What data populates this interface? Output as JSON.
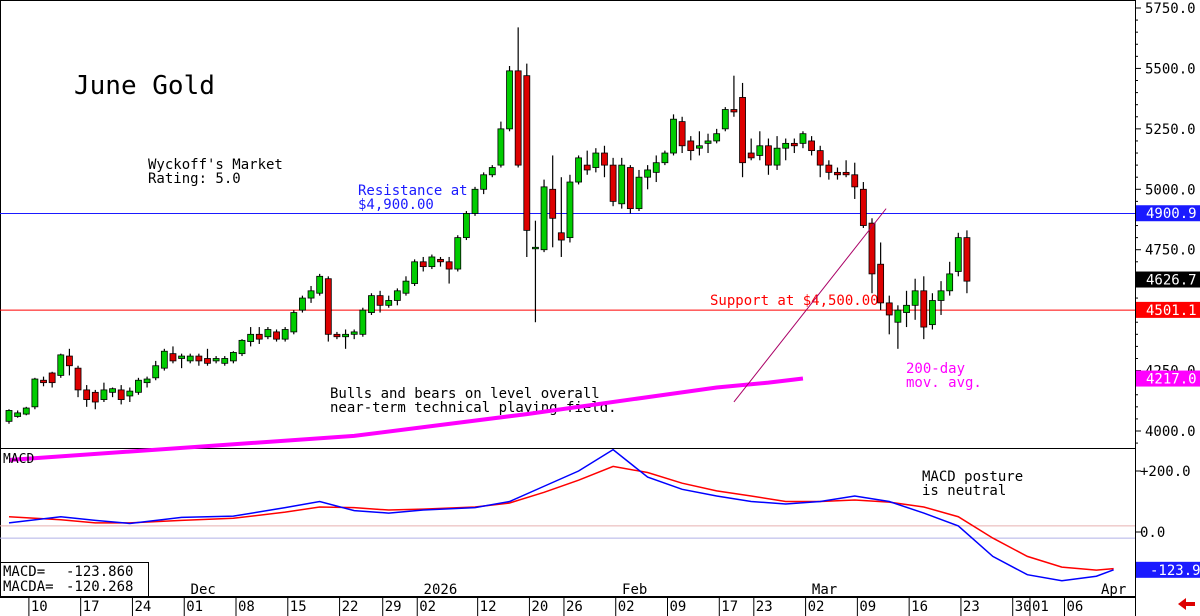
{
  "chart_data": [
    {
      "type": "candlestick",
      "title": "June Gold",
      "rating_text": [
        "Wyckoff's Market",
        "Rating: 5.0"
      ],
      "ylim": [
        3870,
        5760
      ],
      "y_ticks": [
        "5750.0",
        "5500.0",
        "5250.0",
        "5000.0",
        "4750.0",
        "4500.0",
        "4250.0",
        "4000.0"
      ],
      "y_tick_values": [
        5750,
        5500,
        5250,
        5000,
        4750,
        4500,
        4250,
        4000
      ],
      "annotations": {
        "resistance": [
          "Resistance at",
          "$4,900.00"
        ],
        "support": "Support at $4,500.00",
        "ma": [
          "200-day",
          "mov. avg."
        ],
        "comment": [
          "Bulls and bears on level overall",
          "near-term technical playing field."
        ]
      },
      "levels": {
        "resistance": 4900,
        "support": 4500
      },
      "price_labels": [
        {
          "text": "4900.9",
          "value": 4900.9,
          "color": "#1a1aff"
        },
        {
          "text": "4626.7",
          "value": 4626.7,
          "color": "#000000"
        },
        {
          "text": "4501.1",
          "value": 4501.1,
          "color": "#ff0000"
        },
        {
          "text": "4217.0",
          "value": 4217.0,
          "color": "#ff00ff"
        }
      ],
      "ma_line": [
        [
          0,
          3880
        ],
        [
          40,
          3980
        ],
        [
          60,
          4070
        ],
        [
          76,
          4150
        ],
        [
          82,
          4180
        ],
        [
          88,
          4200
        ],
        [
          92,
          4217
        ]
      ],
      "trendline": [
        [
          84,
          4120
        ],
        [
          97,
          4920
        ]
      ],
      "candles": [
        [
          4040,
          4085,
          4030,
          4090
        ],
        [
          4060,
          4075,
          4055,
          4085
        ],
        [
          4070,
          4095,
          4065,
          4100
        ],
        [
          4100,
          4215,
          4090,
          4220
        ],
        [
          4210,
          4200,
          4185,
          4225
        ],
        [
          4240,
          4200,
          4180,
          4245
        ],
        [
          4230,
          4315,
          4220,
          4320
        ],
        [
          4310,
          4270,
          4230,
          4340
        ],
        [
          4260,
          4170,
          4140,
          4270
        ],
        [
          4170,
          4130,
          4100,
          4190
        ],
        [
          4160,
          4120,
          4090,
          4170
        ],
        [
          4130,
          4170,
          4120,
          4200
        ],
        [
          4160,
          4175,
          4140,
          4180
        ],
        [
          4170,
          4130,
          4110,
          4190
        ],
        [
          4145,
          4165,
          4120,
          4180
        ],
        [
          4160,
          4210,
          4150,
          4220
        ],
        [
          4200,
          4215,
          4180,
          4225
        ],
        [
          4220,
          4270,
          4210,
          4290
        ],
        [
          4260,
          4330,
          4250,
          4340
        ],
        [
          4320,
          4290,
          4280,
          4350
        ],
        [
          4300,
          4310,
          4260,
          4320
        ],
        [
          4290,
          4310,
          4280,
          4320
        ],
        [
          4310,
          4290,
          4270,
          4320
        ],
        [
          4300,
          4280,
          4270,
          4340
        ],
        [
          4290,
          4300,
          4280,
          4310
        ],
        [
          4280,
          4300,
          4270,
          4310
        ],
        [
          4290,
          4325,
          4280,
          4330
        ],
        [
          4320,
          4375,
          4310,
          4380
        ],
        [
          4370,
          4400,
          4350,
          4430
        ],
        [
          4400,
          4380,
          4360,
          4430
        ],
        [
          4390,
          4420,
          4380,
          4430
        ],
        [
          4410,
          4380,
          4370,
          4420
        ],
        [
          4380,
          4420,
          4370,
          4430
        ],
        [
          4410,
          4490,
          4400,
          4500
        ],
        [
          4500,
          4550,
          4490,
          4560
        ],
        [
          4550,
          4580,
          4530,
          4600
        ],
        [
          4570,
          4640,
          4560,
          4650
        ],
        [
          4630,
          4400,
          4370,
          4640
        ],
        [
          4400,
          4390,
          4380,
          4410
        ],
        [
          4390,
          4400,
          4340,
          4420
        ],
        [
          4400,
          4410,
          4380,
          4420
        ],
        [
          4400,
          4500,
          4390,
          4510
        ],
        [
          4490,
          4560,
          4480,
          4570
        ],
        [
          4560,
          4520,
          4490,
          4580
        ],
        [
          4520,
          4540,
          4510,
          4560
        ],
        [
          4540,
          4580,
          4520,
          4590
        ],
        [
          4570,
          4620,
          4560,
          4640
        ],
        [
          4610,
          4700,
          4600,
          4710
        ],
        [
          4700,
          4680,
          4660,
          4720
        ],
        [
          4680,
          4720,
          4670,
          4730
        ],
        [
          4710,
          4700,
          4680,
          4720
        ],
        [
          4700,
          4670,
          4610,
          4720
        ],
        [
          4670,
          4800,
          4660,
          4810
        ],
        [
          4800,
          4900,
          4790,
          4910
        ],
        [
          4900,
          5000,
          4890,
          5010
        ],
        [
          5000,
          5060,
          4980,
          5070
        ],
        [
          5060,
          5090,
          5050,
          5100
        ],
        [
          5100,
          5250,
          5090,
          5280
        ],
        [
          5250,
          5490,
          5240,
          5510
        ],
        [
          5490,
          5100,
          5090,
          5670
        ],
        [
          5470,
          4830,
          4720,
          5520
        ],
        [
          4760,
          4760,
          4450,
          4870
        ],
        [
          4750,
          5010,
          4740,
          5040
        ],
        [
          5000,
          4880,
          4760,
          5140
        ],
        [
          4820,
          4790,
          4720,
          5050
        ],
        [
          4800,
          5030,
          4780,
          5060
        ],
        [
          5030,
          5130,
          5020,
          5140
        ],
        [
          5100,
          5080,
          5060,
          5160
        ],
        [
          5090,
          5150,
          5070,
          5170
        ],
        [
          5150,
          5100,
          5050,
          5180
        ],
        [
          5100,
          4950,
          4930,
          5130
        ],
        [
          4940,
          5100,
          4920,
          5130
        ],
        [
          5090,
          4920,
          4900,
          5100
        ],
        [
          4920,
          5050,
          4910,
          5080
        ],
        [
          5050,
          5080,
          5000,
          5100
        ],
        [
          5070,
          5110,
          5030,
          5140
        ],
        [
          5110,
          5150,
          5100,
          5160
        ],
        [
          5150,
          5290,
          5140,
          5310
        ],
        [
          5280,
          5180,
          5150,
          5300
        ],
        [
          5200,
          5160,
          5120,
          5220
        ],
        [
          5170,
          5180,
          5140,
          5240
        ],
        [
          5190,
          5200,
          5150,
          5230
        ],
        [
          5200,
          5230,
          5190,
          5250
        ],
        [
          5250,
          5330,
          5240,
          5340
        ],
        [
          5330,
          5320,
          5300,
          5470
        ],
        [
          5380,
          5110,
          5050,
          5440
        ],
        [
          5150,
          5130,
          5120,
          5210
        ],
        [
          5140,
          5180,
          5120,
          5240
        ],
        [
          5180,
          5100,
          5060,
          5210
        ],
        [
          5100,
          5170,
          5080,
          5220
        ],
        [
          5170,
          5190,
          5120,
          5210
        ],
        [
          5190,
          5180,
          5150,
          5210
        ],
        [
          5190,
          5230,
          5170,
          5240
        ],
        [
          5200,
          5160,
          5140,
          5220
        ],
        [
          5160,
          5100,
          5050,
          5180
        ],
        [
          5100,
          5070,
          5040,
          5120
        ],
        [
          5070,
          5060,
          5040,
          5090
        ],
        [
          5070,
          5060,
          5050,
          5120
        ],
        [
          5060,
          5010,
          4960,
          5110
        ],
        [
          5000,
          4850,
          4840,
          5030
        ],
        [
          4860,
          4650,
          4570,
          4880
        ],
        [
          4690,
          4530,
          4500,
          4780
        ],
        [
          4530,
          4480,
          4400,
          4560
        ],
        [
          4450,
          4500,
          4340,
          4520
        ],
        [
          4490,
          4520,
          4430,
          4580
        ],
        [
          4520,
          4580,
          4460,
          4630
        ],
        [
          4580,
          4430,
          4380,
          4640
        ],
        [
          4440,
          4540,
          4420,
          4570
        ],
        [
          4540,
          4580,
          4480,
          4620
        ],
        [
          4580,
          4650,
          4560,
          4700
        ],
        [
          4660,
          4800,
          4640,
          4820
        ],
        [
          4800,
          4620,
          4570,
          4830
        ]
      ]
    },
    {
      "type": "line",
      "title": "MACD",
      "ylim": [
        -178,
        277
      ],
      "y_ticks": [
        "+200.0",
        "0.0"
      ],
      "y_tick_values": [
        200,
        0
      ],
      "annotation": [
        "MACD posture",
        "is neutral"
      ],
      "reference_lines": [
        20,
        -20
      ],
      "readouts": [
        {
          "label": "MACD=",
          "value": "-123.860"
        },
        {
          "label": "MACDA=",
          "value": "-120.268"
        }
      ],
      "last_value_label": "-123.9",
      "series": [
        {
          "color": "#0000ff",
          "points": [
            [
              0,
              30
            ],
            [
              6,
              50
            ],
            [
              10,
              38
            ],
            [
              14,
              28
            ],
            [
              20,
              48
            ],
            [
              26,
              52
            ],
            [
              32,
              80
            ],
            [
              36,
              100
            ],
            [
              40,
              70
            ],
            [
              44,
              62
            ],
            [
              48,
              72
            ],
            [
              54,
              80
            ],
            [
              58,
              100
            ],
            [
              62,
              150
            ],
            [
              66,
              200
            ],
            [
              70,
              270
            ],
            [
              74,
              180
            ],
            [
              78,
              140
            ],
            [
              82,
              118
            ],
            [
              86,
              100
            ],
            [
              90,
              92
            ],
            [
              94,
              100
            ],
            [
              98,
              118
            ],
            [
              102,
              100
            ],
            [
              106,
              62
            ],
            [
              110,
              20
            ],
            [
              114,
              -80
            ],
            [
              118,
              -140
            ],
            [
              122,
              -160
            ],
            [
              126,
              -145
            ],
            [
              128,
              -124
            ]
          ]
        },
        {
          "color": "#ff0000",
          "points": [
            [
              0,
              50
            ],
            [
              6,
              40
            ],
            [
              10,
              30
            ],
            [
              14,
              30
            ],
            [
              20,
              38
            ],
            [
              26,
              45
            ],
            [
              32,
              65
            ],
            [
              36,
              82
            ],
            [
              40,
              80
            ],
            [
              44,
              72
            ],
            [
              48,
              75
            ],
            [
              54,
              82
            ],
            [
              58,
              95
            ],
            [
              62,
              130
            ],
            [
              66,
              170
            ],
            [
              70,
              215
            ],
            [
              74,
              195
            ],
            [
              78,
              160
            ],
            [
              82,
              135
            ],
            [
              86,
              118
            ],
            [
              90,
              100
            ],
            [
              94,
              100
            ],
            [
              98,
              105
            ],
            [
              102,
              98
            ],
            [
              106,
              82
            ],
            [
              110,
              50
            ],
            [
              114,
              -20
            ],
            [
              118,
              -80
            ],
            [
              122,
              -115
            ],
            [
              126,
              -125
            ],
            [
              128,
              -120
            ]
          ]
        }
      ]
    }
  ],
  "x_axis": {
    "month_labels": [
      {
        "text": "Dec",
        "pos": 21.5
      },
      {
        "text": "2026",
        "pos": 48.5
      },
      {
        "text": "Feb",
        "pos": 71.5
      },
      {
        "text": "Mar",
        "pos": 93.5
      },
      {
        "text": "Apr",
        "pos": 127
      }
    ],
    "day_labels": [
      {
        "text": "10",
        "pos": 3
      },
      {
        "text": "17",
        "pos": 9
      },
      {
        "text": "24",
        "pos": 15
      },
      {
        "text": "01",
        "pos": 21
      },
      {
        "text": "08",
        "pos": 27
      },
      {
        "text": "15",
        "pos": 33
      },
      {
        "text": "22",
        "pos": 39
      },
      {
        "text": "29",
        "pos": 44
      },
      {
        "text": "02",
        "pos": 48
      },
      {
        "text": "12",
        "pos": 55
      },
      {
        "text": "20",
        "pos": 61
      },
      {
        "text": "26",
        "pos": 65
      },
      {
        "text": "02",
        "pos": 71
      },
      {
        "text": "09",
        "pos": 77
      },
      {
        "text": "17",
        "pos": 83
      },
      {
        "text": "23",
        "pos": 87
      },
      {
        "text": "02",
        "pos": 93
      },
      {
        "text": "09",
        "pos": 99
      },
      {
        "text": "16",
        "pos": 105
      },
      {
        "text": "23",
        "pos": 111
      },
      {
        "text": "30",
        "pos": 117
      },
      {
        "text": "01",
        "pos": 119
      },
      {
        "text": "06",
        "pos": 123
      }
    ]
  },
  "colors": {
    "up": "#00cc00",
    "down": "#dd0000",
    "ma": "#ff00ff",
    "resistance": "#1a1aff",
    "support": "#ff0000",
    "macd": "#0000ff",
    "signal": "#ff0000",
    "arrow": "#dd0000"
  }
}
